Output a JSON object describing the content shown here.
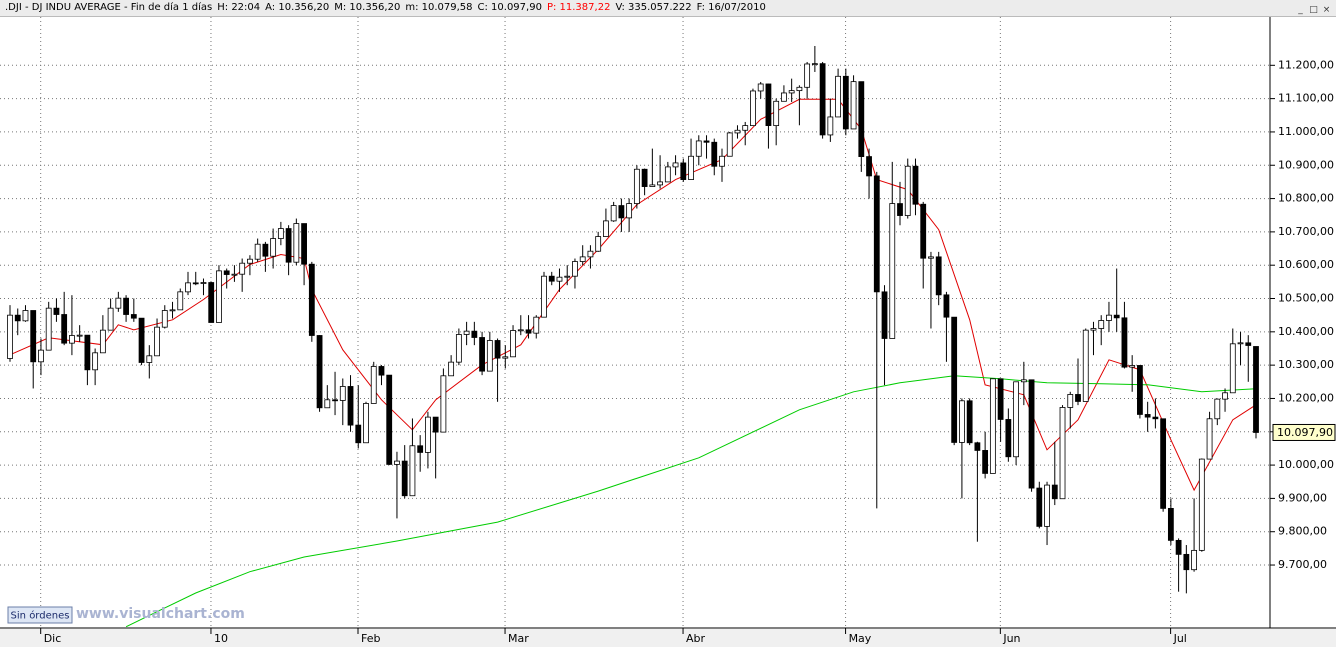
{
  "chart_data": {
    "type": "candlestick",
    "header": [
      {
        "text": ".DJI - DJ INDU AVERAGE - Fin de día 1 días",
        "color": "#000000"
      },
      {
        "text": "H: 22:04",
        "color": "#000000"
      },
      {
        "text": "A: 10.356,20",
        "color": "#000000"
      },
      {
        "text": "M: 10.356,20",
        "color": "#000000"
      },
      {
        "text": "m: 10.079,58",
        "color": "#000000"
      },
      {
        "text": "C: 10.097,90",
        "color": "#000000"
      },
      {
        "text": "P: 11.387,22",
        "color": "#ff0000"
      },
      {
        "text": "V: 335.057.222",
        "color": "#000000"
      },
      {
        "text": "F: 16/07/2010",
        "color": "#000000"
      }
    ],
    "button": "Sin órdenes",
    "watermark": "www.visualchart.com",
    "categories": [
      null,
      null,
      null,
      null,
      null,
      "Dic",
      null,
      null,
      null,
      null,
      null,
      null,
      null,
      null,
      null,
      null,
      null,
      null,
      null,
      null,
      null,
      null,
      null,
      null,
      null,
      null,
      null,
      "10",
      null,
      null,
      null,
      null,
      null,
      null,
      null,
      null,
      null,
      null,
      null,
      null,
      null,
      null,
      null,
      null,
      null,
      null,
      "Feb",
      null,
      null,
      null,
      null,
      null,
      null,
      null,
      null,
      null,
      null,
      null,
      null,
      null,
      null,
      null,
      null,
      null,
      null,
      "Mar",
      null,
      null,
      null,
      null,
      null,
      null,
      null,
      null,
      null,
      null,
      null,
      null,
      null,
      null,
      null,
      null,
      null,
      null,
      null,
      null,
      null,
      null,
      "Abr",
      null,
      null,
      null,
      null,
      null,
      null,
      null,
      null,
      null,
      null,
      null,
      null,
      null,
      null,
      null,
      null,
      null,
      null,
      null,
      null,
      "May",
      null,
      null,
      null,
      null,
      null,
      null,
      null,
      null,
      null,
      null,
      null,
      null,
      null,
      null,
      null,
      null,
      null,
      null,
      null,
      "Jun",
      null,
      null,
      null,
      null,
      null,
      null,
      null,
      null,
      null,
      null,
      null,
      null,
      null,
      null,
      null,
      null,
      null,
      null,
      null,
      null,
      null,
      "Jul",
      null,
      null,
      null,
      null,
      null,
      null,
      null,
      null,
      null,
      null
    ],
    "open": [
      10320,
      10450,
      10433,
      10464,
      10310,
      10345,
      10471,
      10452,
      10366,
      10389,
      10390,
      10286,
      10337,
      10405,
      10471,
      10501,
      10452,
      10441,
      10308,
      10328,
      10414,
      10464,
      10466,
      10520,
      10547,
      10545,
      10548,
      10428,
      10583,
      10572,
      10573,
      10606,
      10618,
      10663,
      10627,
      10680,
      10710,
      10609,
      10725,
      10603,
      10389,
      10172,
      10196,
      10194,
      10236,
      10120,
      10067,
      10185,
      10296,
      10270,
      10002,
      10012,
      9908,
      10058,
      10038,
      10144,
      10099,
      10268,
      10309,
      10392,
      10402,
      10383,
      10282,
      10374,
      10321,
      10325,
      10404,
      10406,
      10396,
      10444,
      10567,
      10552,
      10564,
      10567,
      10611,
      10625,
      10642,
      10686,
      10733,
      10779,
      10742,
      10785,
      10888,
      10836,
      10841,
      10850,
      10895,
      10907,
      10857,
      10927,
      10973,
      10969,
      10897,
      10927,
      10997,
      11005,
      11019,
      11123,
      11144,
      11019,
      11092,
      11117,
      11124,
      11134,
      11204,
      11205,
      10991,
      11045,
      11167,
      11009,
      11151,
      10926,
      10868,
      10520,
      10380,
      10785,
      10749,
      10897,
      10783,
      10621,
      10625,
      10511,
      10444,
      10068,
      10193,
      10067,
      10044,
      9975,
      10259,
      10137,
      10025,
      10250,
      10256,
      9931,
      9816,
      9940,
      9899,
      10173,
      10212,
      10191,
      10405,
      10410,
      10434,
      10450,
      10442,
      10294,
      10299,
      10152,
      10144,
      10139,
      9870,
      9774,
      9732,
      9686,
      9744,
      10018,
      10139,
      10198,
      10217,
      10364,
      10367,
      10356
    ],
    "high": [
      10480,
      10470,
      10480,
      10464,
      10380,
      10490,
      10500,
      10520,
      10510,
      10420,
      10390,
      10350,
      10450,
      10500,
      10520,
      10510,
      10500,
      10441,
      10360,
      10440,
      10480,
      10490,
      10530,
      10580,
      10580,
      10560,
      10550,
      10600,
      10590,
      10600,
      10620,
      10630,
      10680,
      10670,
      10710,
      10730,
      10720,
      10740,
      10725,
      10610,
      10390,
      10240,
      10280,
      10260,
      10270,
      10240,
      10190,
      10310,
      10300,
      10270,
      10040,
      10060,
      10140,
      10090,
      10160,
      10144,
      10290,
      10330,
      10410,
      10430,
      10430,
      10400,
      10400,
      10380,
      10360,
      10420,
      10450,
      10450,
      10450,
      10580,
      10580,
      10590,
      10600,
      10620,
      10660,
      10660,
      10700,
      10770,
      10790,
      10800,
      10800,
      10900,
      10890,
      10950,
      10930,
      10910,
      10930,
      10920,
      10980,
      10990,
      10990,
      10980,
      10950,
      11000,
      11020,
      11030,
      11130,
      11150,
      11145,
      11100,
      11140,
      11160,
      11140,
      11210,
      11258,
      11210,
      11100,
      11190,
      11190,
      11170,
      11151,
      10950,
      10880,
      10540,
      10910,
      10850,
      10920,
      10920,
      10790,
      10640,
      10640,
      10520,
      10444,
      10200,
      10200,
      10070,
      10100,
      10260,
      10259,
      10170,
      10250,
      10310,
      10256,
      9950,
      9950,
      10070,
      10180,
      10220,
      10320,
      10410,
      10430,
      10450,
      10490,
      10590,
      10490,
      10330,
      10300,
      10190,
      10200,
      10139,
      9900,
      9780,
      9760,
      9900,
      10020,
      10160,
      10200,
      10230,
      10410,
      10400,
      10390,
      10356
    ],
    "low": [
      10310,
      10390,
      10430,
      10230,
      10270,
      10345,
      10430,
      10360,
      10330,
      10370,
      10240,
      10240,
      10337,
      10405,
      10460,
      10430,
      10430,
      10300,
      10260,
      10328,
      10410,
      10440,
      10466,
      10510,
      10540,
      10510,
      10428,
      10428,
      10530,
      10550,
      10520,
      10570,
      10610,
      10580,
      10590,
      10660,
      10570,
      10600,
      10540,
      10370,
      10160,
      10172,
      10150,
      10120,
      10100,
      10050,
      10067,
      10185,
      10240,
      10000,
      9840,
      9900,
      9908,
      9980,
      9990,
      9960,
      10099,
      10268,
      10300,
      10360,
      10360,
      10270,
      10282,
      10190,
      10290,
      10325,
      10390,
      10380,
      10380,
      10444,
      10540,
      10520,
      10540,
      10530,
      10600,
      10590,
      10640,
      10686,
      10730,
      10700,
      10700,
      10770,
      10810,
      10836,
      10830,
      10850,
      10870,
      10850,
      10857,
      10900,
      10920,
      10870,
      10850,
      10927,
      10980,
      10960,
      11019,
      11100,
      10950,
      10960,
      11092,
      11090,
      11020,
      11100,
      11180,
      10980,
      10970,
      11045,
      10990,
      11009,
      10880,
      10800,
      9870,
      10240,
      10380,
      10720,
      10740,
      10750,
      10530,
      10410,
      10480,
      10310,
      10060,
      9900,
      10060,
      9770,
      9960,
      9975,
      10070,
      10010,
      10000,
      10180,
      9920,
      9810,
      9760,
      9880,
      9899,
      10110,
      10180,
      10191,
      10330,
      10360,
      10400,
      10400,
      10290,
      10220,
      10140,
      10100,
      10110,
      9860,
      9760,
      9620,
      9615,
      9680,
      9740,
      10018,
      10120,
      10160,
      10217,
      10300,
      10250,
      10080
    ],
    "close": [
      10450,
      10433,
      10464,
      10310,
      10345,
      10471,
      10452,
      10366,
      10389,
      10390,
      10286,
      10337,
      10405,
      10471,
      10501,
      10452,
      10441,
      10308,
      10328,
      10414,
      10464,
      10466,
      10520,
      10547,
      10545,
      10548,
      10428,
      10583,
      10572,
      10573,
      10606,
      10618,
      10663,
      10627,
      10680,
      10710,
      10609,
      10725,
      10603,
      10389,
      10172,
      10196,
      10194,
      10236,
      10120,
      10067,
      10185,
      10296,
      10270,
      10002,
      10012,
      9908,
      10058,
      10038,
      10144,
      10099,
      10268,
      10309,
      10392,
      10402,
      10383,
      10282,
      10374,
      10321,
      10325,
      10404,
      10406,
      10396,
      10444,
      10567,
      10552,
      10564,
      10567,
      10611,
      10625,
      10642,
      10686,
      10733,
      10779,
      10742,
      10785,
      10888,
      10836,
      10841,
      10850,
      10895,
      10907,
      10857,
      10927,
      10973,
      10969,
      10897,
      10927,
      10997,
      11005,
      11019,
      11123,
      11144,
      11019,
      11092,
      11117,
      11124,
      11134,
      11204,
      11205,
      10991,
      11045,
      11167,
      11009,
      11151,
      10926,
      10868,
      10520,
      10380,
      10785,
      10749,
      10897,
      10783,
      10621,
      10625,
      10511,
      10444,
      10068,
      10193,
      10067,
      10044,
      9975,
      10259,
      10137,
      10025,
      10250,
      10256,
      9931,
      9816,
      9940,
      9899,
      10173,
      10212,
      10191,
      10405,
      10410,
      10434,
      10450,
      10442,
      10294,
      10299,
      10152,
      10144,
      10139,
      9870,
      9774,
      9732,
      9686,
      9744,
      10018,
      10139,
      10198,
      10217,
      10364,
      10367,
      10359,
      10097.9
    ],
    "up_color": "#ffffff",
    "down_color": "#000000",
    "moving_averages": [
      {
        "color": "#e00000",
        "x": [
          0,
          5,
          12,
          14,
          16,
          21,
          25,
          31,
          35,
          38,
          39,
          43,
          48,
          52,
          55,
          61,
          66,
          71,
          76,
          81,
          86,
          92,
          97,
          102,
          107,
          110,
          112,
          116,
          120,
          124,
          126,
          131,
          134,
          138,
          142,
          146,
          150,
          153,
          158,
          161
        ],
        "values": [
          10331,
          10382,
          10361,
          10421,
          10406,
          10436,
          10497,
          10602,
          10632,
          10620,
          10527,
          10346,
          10196,
          10106,
          10196,
          10301,
          10361,
          10527,
          10647,
          10782,
          10857,
          10917,
          11038,
          11098,
          11098,
          11008,
          10857,
          10827,
          10707,
          10436,
          10241,
          10211,
          10046,
          10136,
          10316,
          10286,
          10076,
          9925,
          10136,
          10181
        ]
      },
      {
        "color": "#00cc00",
        "x": [
          15,
          19,
          24,
          31,
          38,
          50,
          63,
          76,
          89,
          102,
          109,
          115,
          122,
          128,
          134,
          141,
          147,
          154,
          161
        ],
        "values": [
          9515,
          9560,
          9616,
          9680,
          9724,
          9772,
          9829,
          9922,
          10022,
          10166,
          10220,
          10247,
          10268,
          10259,
          10247,
          10244,
          10241,
          10220,
          10229
        ]
      }
    ],
    "last_price_label": {
      "value": 10097.9,
      "label": "10.097,90"
    },
    "ylim": [
      9511,
      11345
    ],
    "yticks": [
      {
        "value": 9700,
        "label": "9.700,00"
      },
      {
        "value": 9800,
        "label": "9.800,00"
      },
      {
        "value": 9900,
        "label": "9.900,00"
      },
      {
        "value": 10000,
        "label": "10.000,00"
      },
      {
        "value": 10100,
        "label": "10.100,00"
      },
      {
        "value": 10200,
        "label": "10.200,00"
      },
      {
        "value": 10300,
        "label": "10.300,00"
      },
      {
        "value": 10400,
        "label": "10.400,00"
      },
      {
        "value": 10500,
        "label": "10.500,00"
      },
      {
        "value": 10600,
        "label": "10.600,00"
      },
      {
        "value": 10700,
        "label": "10.700,00"
      },
      {
        "value": 10800,
        "label": "10.800,00"
      },
      {
        "value": 10900,
        "label": "10.900,00"
      },
      {
        "value": 11000,
        "label": "11.000,00"
      },
      {
        "value": 11100,
        "label": "11.100,00"
      },
      {
        "value": 11200,
        "label": "11.200,00"
      }
    ],
    "grid": true
  }
}
